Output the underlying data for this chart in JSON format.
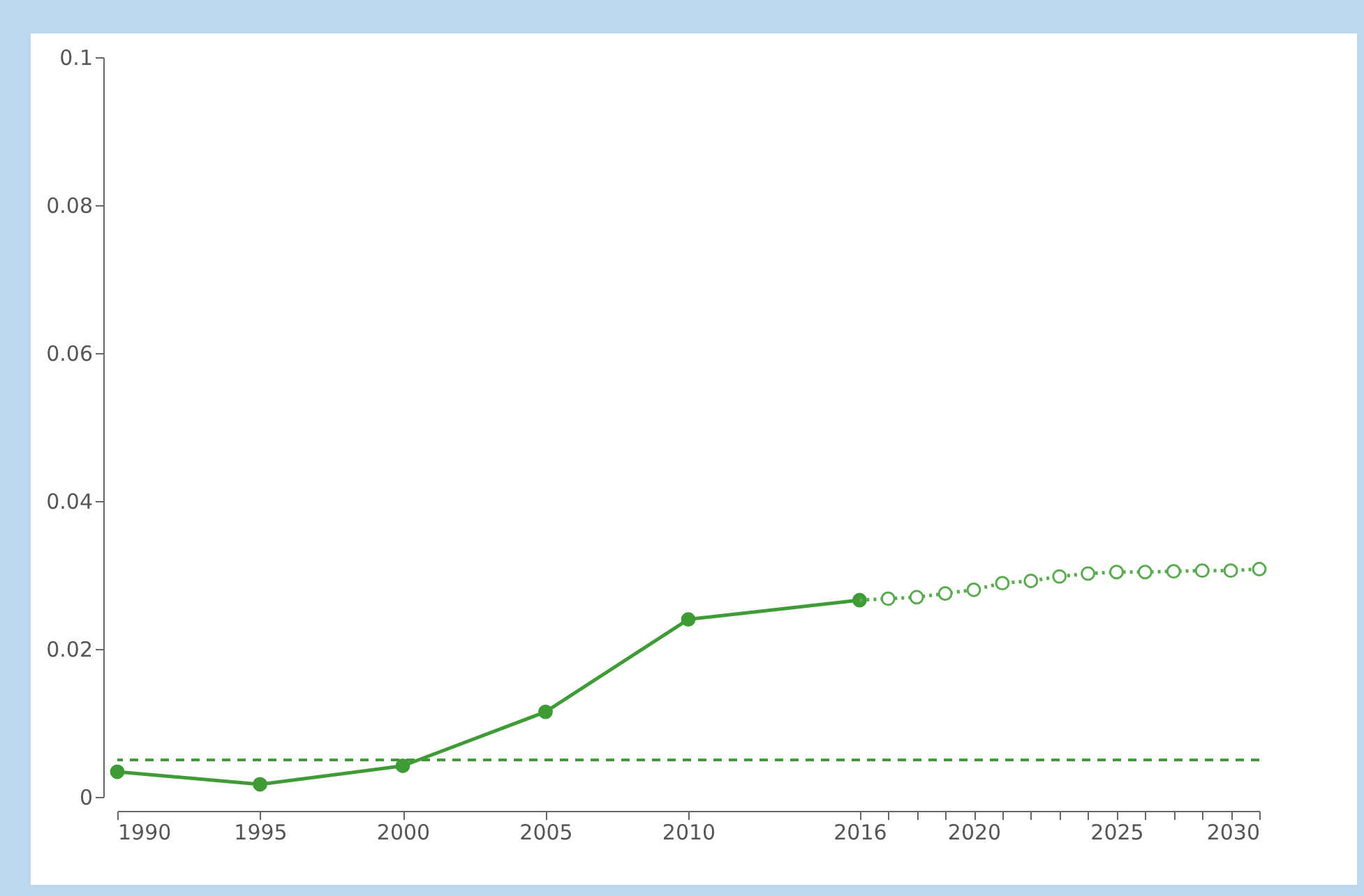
{
  "chart_data": {
    "type": "line",
    "xlim": [
      1990,
      2030
    ],
    "xticks": [
      1990,
      1995,
      2000,
      2005,
      2010,
      2016,
      {
        "value": 2017,
        "label": null
      },
      {
        "value": 2018,
        "label": null
      },
      {
        "value": 2019,
        "label": null
      },
      2020,
      {
        "value": 2021,
        "label": null
      },
      {
        "value": 2022,
        "label": null
      },
      {
        "value": 2023,
        "label": null
      },
      {
        "value": 2024,
        "label": null
      },
      2025,
      {
        "value": 2026,
        "label": null
      },
      {
        "value": 2027,
        "label": null
      },
      {
        "value": 2028,
        "label": null
      },
      {
        "value": 2029,
        "label": null
      },
      2030
    ],
    "ylim": [
      0,
      0.1
    ],
    "yticks": [
      0,
      0.02,
      0.04,
      0.06,
      0.08,
      0.1
    ],
    "grid": false,
    "marker": "circle",
    "series": [
      {
        "color": "#3f9b35",
        "line_style": "solid",
        "x": [
          1990,
          1995,
          2000,
          2005,
          2010,
          2016
        ],
        "values": [
          0.0034,
          0.0017,
          0.0042,
          0.0115,
          0.024,
          0.0266
        ]
      },
      {
        "color": "#5aab4f",
        "line_style": "dotted",
        "x": [
          2016,
          2017,
          2018,
          2019,
          2020,
          2021,
          2022,
          2023,
          2024,
          2025,
          2026,
          2027,
          2028,
          2029,
          2030
        ],
        "values": [
          0.0266,
          0.0268,
          0.027,
          0.0275,
          0.028,
          0.0289,
          0.0292,
          0.0298,
          0.0302,
          0.0304,
          0.0304,
          0.0305,
          0.0306,
          0.0306,
          0.0308
        ]
      }
    ],
    "ref_lines": [
      {
        "axis": "y",
        "value": 0.005,
        "color": "#3f9b35",
        "line_style": "dashed"
      }
    ]
  }
}
